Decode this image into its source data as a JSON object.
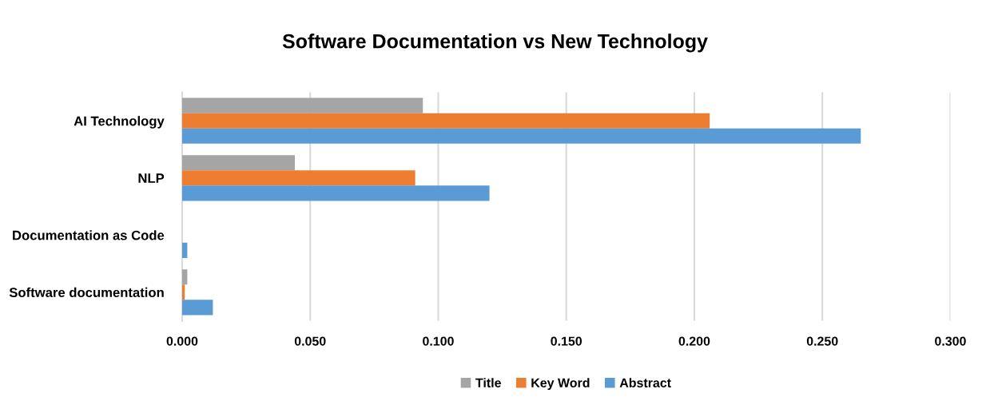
{
  "chart_data": {
    "type": "bar",
    "orientation": "horizontal",
    "title": "Software Documentation vs New Technology",
    "categories": [
      "AI Technology",
      "NLP",
      "Documentation as Code",
      "Software documentation"
    ],
    "series": [
      {
        "name": "Title",
        "color": "#a5a5a5",
        "values": [
          0.094,
          0.044,
          0,
          0.002
        ]
      },
      {
        "name": "Key Word",
        "color": "#ed7d31",
        "values": [
          0.206,
          0.091,
          0,
          0.001
        ]
      },
      {
        "name": "Abstract",
        "color": "#5b9bd5",
        "values": [
          0.265,
          0.12,
          0.002,
          0.012
        ]
      }
    ],
    "xlim": [
      0,
      0.3
    ],
    "xticks": [
      {
        "value": 0,
        "label": "0.000"
      },
      {
        "value": 0.05,
        "label": "0.050"
      },
      {
        "value": 0.1,
        "label": "0.100"
      },
      {
        "value": 0.15,
        "label": "0.150"
      },
      {
        "value": 0.2,
        "label": "0.200"
      },
      {
        "value": 0.25,
        "label": "0.250"
      },
      {
        "value": 0.3,
        "label": "0.300"
      }
    ],
    "grid": "x",
    "legend": "bottom"
  }
}
